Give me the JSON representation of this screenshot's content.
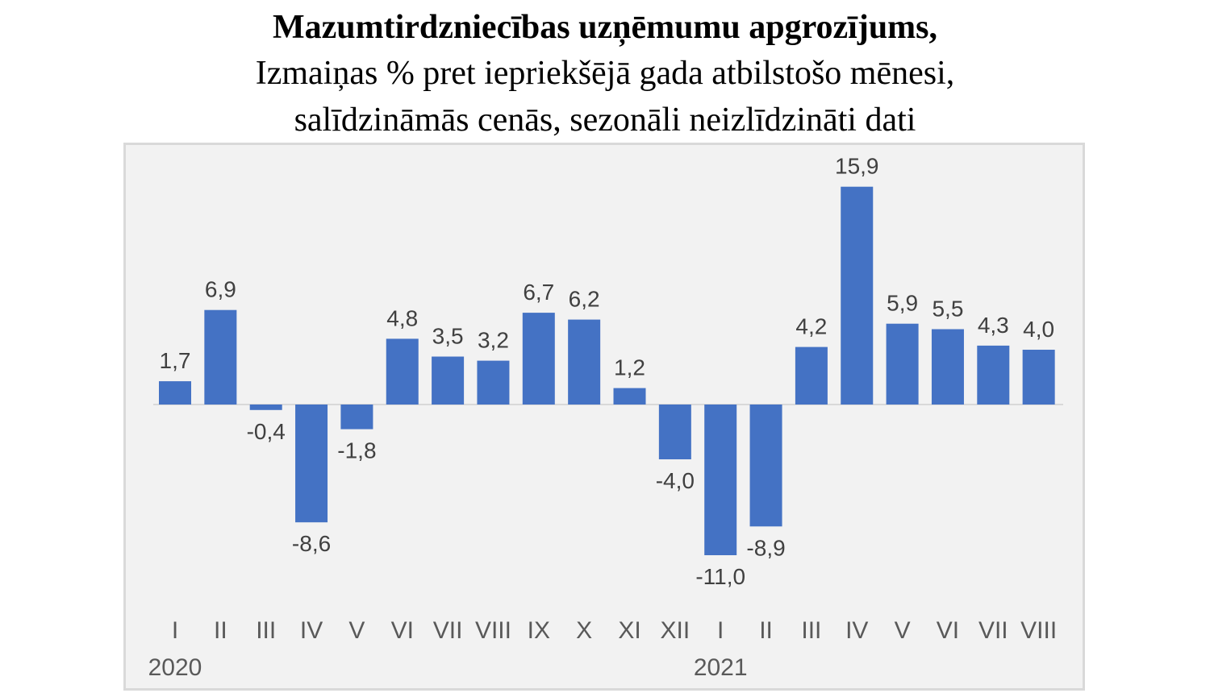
{
  "chart_data": {
    "type": "bar",
    "title": "Mazumtirdzniecības uzņēmumu apgrozījums,",
    "subtitle_lines": [
      "Izmaiņas % pret iepriekšējā gada atbilstošo mēnesi,",
      "salīdzināmās cenās, sezonāli neizlīdzināti dati"
    ],
    "categories": [
      "I",
      "II",
      "III",
      "IV",
      "V",
      "VI",
      "VII",
      "VIII",
      "IX",
      "X",
      "XI",
      "XII",
      "I",
      "II",
      "III",
      "IV",
      "V",
      "VI",
      "VII",
      "VIII"
    ],
    "values": [
      1.7,
      6.9,
      -0.4,
      -8.6,
      -1.8,
      4.8,
      3.5,
      3.2,
      6.7,
      6.2,
      1.2,
      -4.0,
      -11.0,
      -8.9,
      4.2,
      15.9,
      5.9,
      5.5,
      4.3,
      4.0
    ],
    "value_labels": [
      "1,7",
      "6,9",
      "-0,4",
      "-8,6",
      "-1,8",
      "4,8",
      "3,5",
      "3,2",
      "6,7",
      "6,2",
      "1,2",
      "-4,0",
      "-11,0",
      "-8,9",
      "4,2",
      "15,9",
      "5,9",
      "5,5",
      "4,3",
      "4,0"
    ],
    "year_groups": [
      {
        "label": "2020",
        "start_index": 0
      },
      {
        "label": "2021",
        "start_index": 12
      }
    ],
    "bar_color": "#4472c4",
    "grid": false,
    "legend": "none"
  }
}
